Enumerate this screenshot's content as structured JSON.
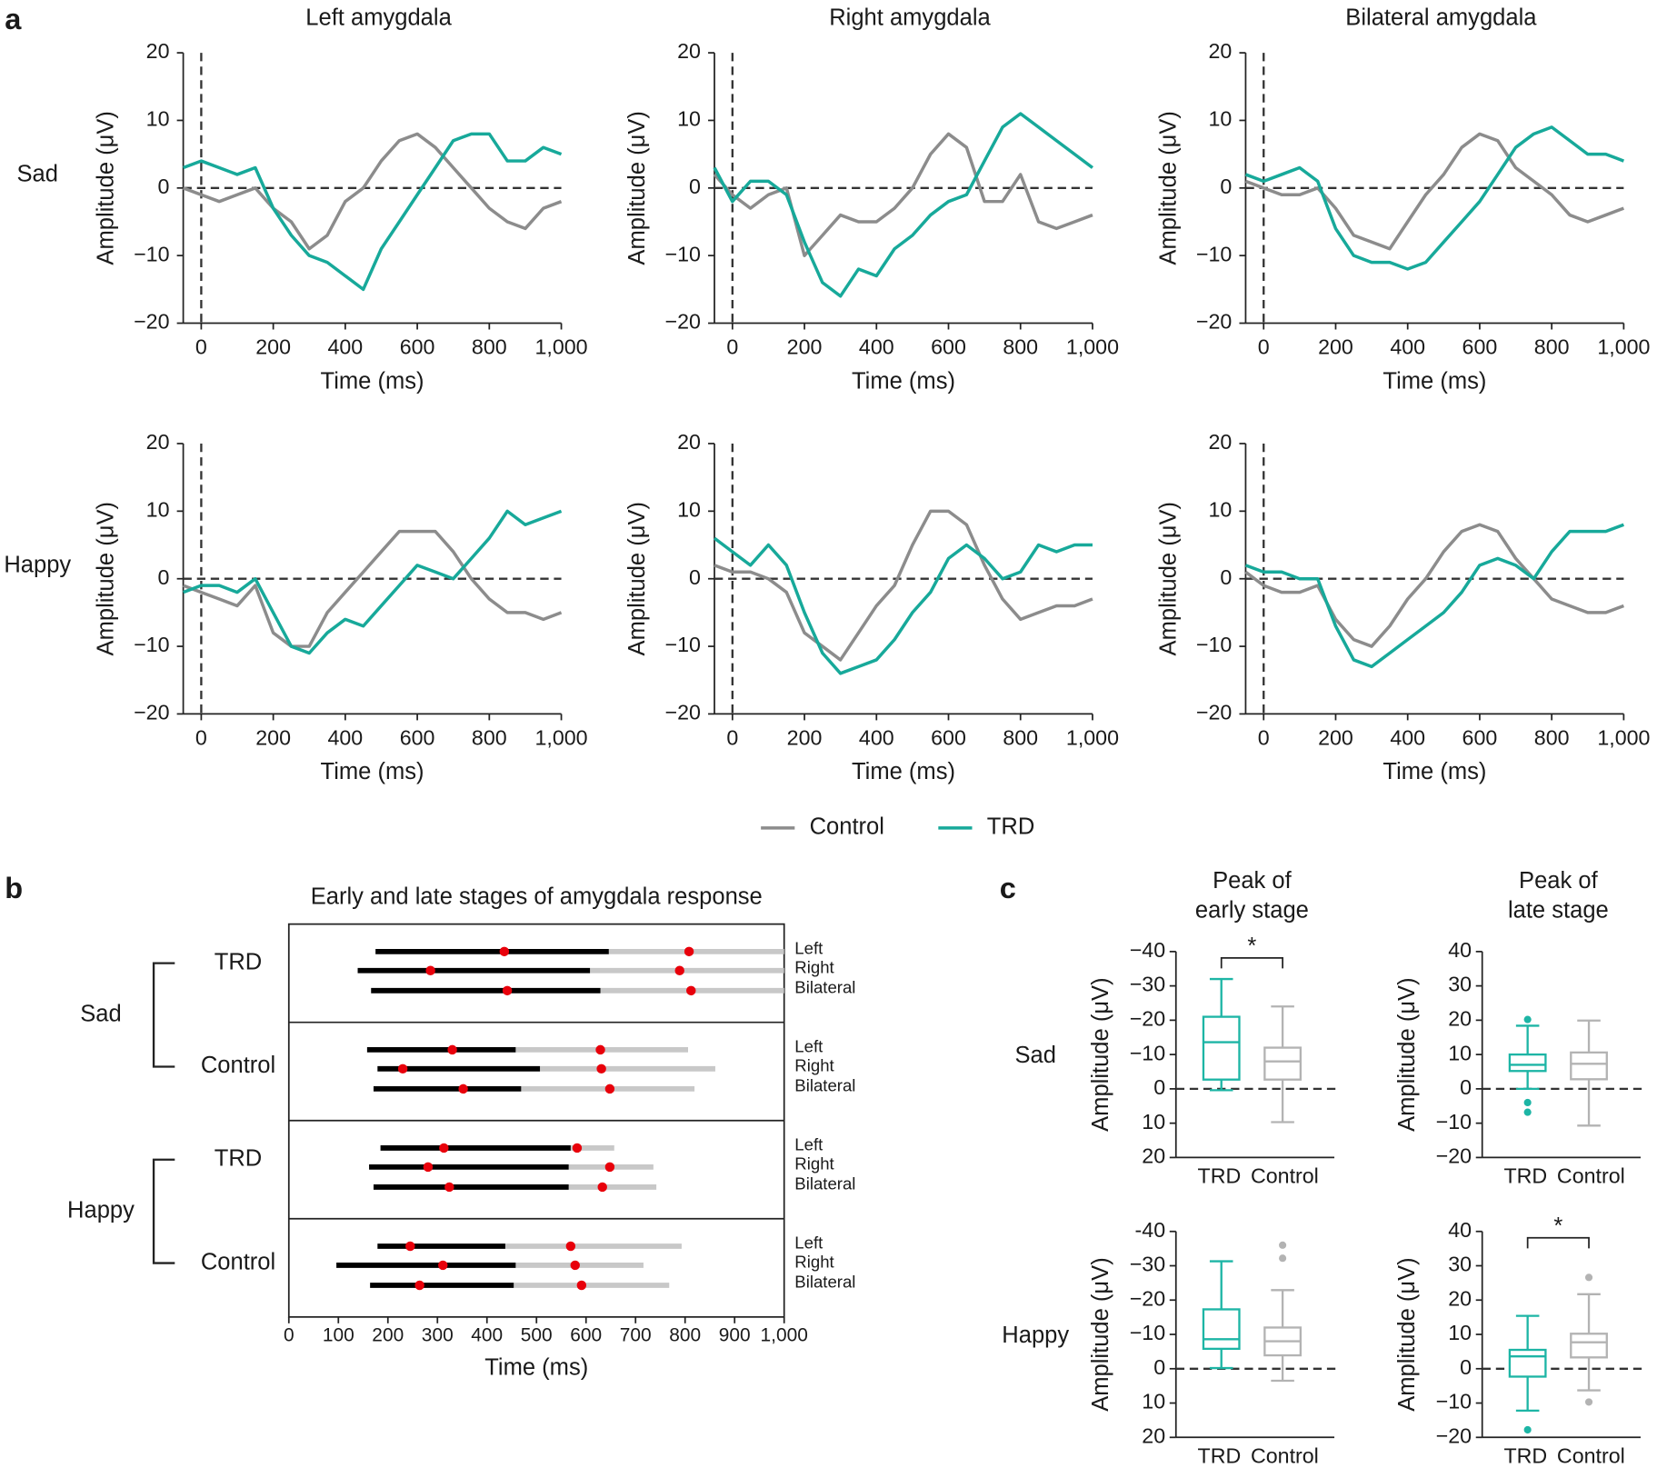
{
  "legend": {
    "series": [
      {
        "name": "Control",
        "color": "#8c8c8c"
      },
      {
        "name": "TRD",
        "color": "#17a99a"
      }
    ]
  },
  "chart_data": [
    {
      "type": "line",
      "panel_label": "a",
      "title": "Left amygdala",
      "row_label": "Sad",
      "xlabel": "Time (ms)",
      "ylabel": "Amplitude (μV)",
      "x": [
        -50,
        0,
        50,
        100,
        150,
        200,
        250,
        300,
        350,
        400,
        450,
        500,
        550,
        600,
        650,
        700,
        750,
        800,
        850,
        900,
        950,
        1000
      ],
      "series": [
        {
          "values": [
            0,
            -1,
            -2,
            -1,
            0,
            -3,
            -5,
            -9,
            -7,
            -2,
            0,
            4,
            7,
            8,
            6,
            3,
            0,
            -3,
            -5,
            -6,
            -3,
            -2
          ]
        },
        {
          "values": [
            3,
            4,
            3,
            2,
            3,
            -3,
            -7,
            -10,
            -11,
            -13,
            -15,
            -9,
            -5,
            -1,
            3,
            7,
            8,
            8,
            4,
            4,
            6,
            5
          ]
        }
      ],
      "xlim": [
        -50,
        1000
      ],
      "ylim": [
        -20,
        20
      ],
      "xticks": [
        0,
        200,
        400,
        600,
        800,
        {
          "value": 1000,
          "label": "1,000"
        }
      ],
      "yticks": [
        {
          "value": -20,
          "label": "−20"
        },
        {
          "value": -10,
          "label": "−10"
        },
        0,
        10,
        20
      ],
      "zero_lines": true
    },
    {
      "type": "line",
      "title": "Right amygdala",
      "xlabel": "Time (ms)",
      "ylabel": "Amplitude (μV)",
      "x": [
        -50,
        0,
        50,
        100,
        150,
        200,
        250,
        300,
        350,
        400,
        450,
        500,
        550,
        600,
        650,
        700,
        750,
        800,
        850,
        900,
        950,
        1000
      ],
      "series": [
        {
          "values": [
            2,
            -1,
            -3,
            -1,
            0,
            -10,
            -7,
            -4,
            -5,
            -5,
            -3,
            0,
            5,
            8,
            6,
            -2,
            -2,
            2,
            -5,
            -6,
            -5,
            -4
          ]
        },
        {
          "values": [
            3,
            -2,
            1,
            1,
            -1,
            -8,
            -14,
            -16,
            -12,
            -13,
            -9,
            -7,
            -4,
            -2,
            -1,
            4,
            9,
            11,
            9,
            7,
            5,
            3
          ]
        }
      ],
      "xlim": [
        -50,
        1000
      ],
      "ylim": [
        -20,
        20
      ],
      "xticks": [
        0,
        200,
        400,
        600,
        800,
        {
          "value": 1000,
          "label": "1,000"
        }
      ],
      "yticks": [
        {
          "value": -20,
          "label": "−20"
        },
        {
          "value": -10,
          "label": "−10"
        },
        0,
        10,
        20
      ],
      "zero_lines": true
    },
    {
      "type": "line",
      "title": "Bilateral amygdala",
      "xlabel": "Time (ms)",
      "ylabel": "Amplitude (μV)",
      "x": [
        -50,
        0,
        50,
        100,
        150,
        200,
        250,
        300,
        350,
        400,
        450,
        500,
        550,
        600,
        650,
        700,
        750,
        800,
        850,
        900,
        950,
        1000
      ],
      "series": [
        {
          "values": [
            1,
            0,
            -1,
            -1,
            0,
            -3,
            -7,
            -8,
            -9,
            -5,
            -1,
            2,
            6,
            8,
            7,
            3,
            1,
            -1,
            -4,
            -5,
            -4,
            -3
          ]
        },
        {
          "values": [
            2,
            1,
            2,
            3,
            1,
            -6,
            -10,
            -11,
            -11,
            -12,
            -11,
            -8,
            -5,
            -2,
            2,
            6,
            8,
            9,
            7,
            5,
            5,
            4
          ]
        }
      ],
      "xlim": [
        -50,
        1000
      ],
      "ylim": [
        -20,
        20
      ],
      "xticks": [
        0,
        200,
        400,
        600,
        800,
        {
          "value": 1000,
          "label": "1,000"
        }
      ],
      "yticks": [
        {
          "value": -20,
          "label": "−20"
        },
        {
          "value": -10,
          "label": "−10"
        },
        0,
        10,
        20
      ],
      "zero_lines": true
    },
    {
      "type": "line",
      "row_label": "Happy",
      "xlabel": "Time (ms)",
      "ylabel": "Amplitude (μV)",
      "x": [
        -50,
        0,
        50,
        100,
        150,
        200,
        250,
        300,
        350,
        400,
        450,
        500,
        550,
        600,
        650,
        700,
        750,
        800,
        850,
        900,
        950,
        1000
      ],
      "series": [
        {
          "values": [
            -1,
            -2,
            -3,
            -4,
            -1,
            -8,
            -10,
            -10,
            -5,
            -2,
            1,
            4,
            7,
            7,
            7,
            4,
            0,
            -3,
            -5,
            -5,
            -6,
            -5
          ]
        },
        {
          "values": [
            -2,
            -1,
            -1,
            -2,
            0,
            -5,
            -10,
            -11,
            -8,
            -6,
            -7,
            -4,
            -1,
            2,
            1,
            0,
            3,
            6,
            10,
            8,
            9,
            10
          ]
        }
      ],
      "xlim": [
        -50,
        1000
      ],
      "ylim": [
        -20,
        20
      ],
      "xticks": [
        0,
        200,
        400,
        600,
        800,
        {
          "value": 1000,
          "label": "1,000"
        }
      ],
      "yticks": [
        {
          "value": -20,
          "label": "−20"
        },
        {
          "value": -10,
          "label": "−10"
        },
        0,
        10,
        20
      ],
      "zero_lines": true
    },
    {
      "type": "line",
      "xlabel": "Time (ms)",
      "ylabel": "Amplitude (μV)",
      "x": [
        -50,
        0,
        50,
        100,
        150,
        200,
        250,
        300,
        350,
        400,
        450,
        500,
        550,
        600,
        650,
        700,
        750,
        800,
        850,
        900,
        950,
        1000
      ],
      "series": [
        {
          "values": [
            2,
            1,
            1,
            0,
            -2,
            -8,
            -10,
            -12,
            -8,
            -4,
            -1,
            5,
            10,
            10,
            8,
            2,
            -3,
            -6,
            -5,
            -4,
            -4,
            -3
          ]
        },
        {
          "values": [
            6,
            4,
            2,
            5,
            2,
            -5,
            -11,
            -14,
            -13,
            -12,
            -9,
            -5,
            -2,
            3,
            5,
            3,
            0,
            1,
            5,
            4,
            5,
            5
          ]
        }
      ],
      "xlim": [
        -50,
        1000
      ],
      "ylim": [
        -20,
        20
      ],
      "xticks": [
        0,
        200,
        400,
        600,
        800,
        {
          "value": 1000,
          "label": "1,000"
        }
      ],
      "yticks": [
        {
          "value": -20,
          "label": "−20"
        },
        {
          "value": -10,
          "label": "−10"
        },
        0,
        10,
        20
      ],
      "zero_lines": true
    },
    {
      "type": "line",
      "xlabel": "Time (ms)",
      "ylabel": "Amplitude (μV)",
      "x": [
        -50,
        0,
        50,
        100,
        150,
        200,
        250,
        300,
        350,
        400,
        450,
        500,
        550,
        600,
        650,
        700,
        750,
        800,
        850,
        900,
        950,
        1000
      ],
      "series": [
        {
          "values": [
            1,
            -1,
            -2,
            -2,
            -1,
            -6,
            -9,
            -10,
            -7,
            -3,
            0,
            4,
            7,
            8,
            7,
            3,
            0,
            -3,
            -4,
            -5,
            -5,
            -4
          ]
        },
        {
          "values": [
            2,
            1,
            1,
            0,
            0,
            -7,
            -12,
            -13,
            -11,
            -9,
            -7,
            -5,
            -2,
            2,
            3,
            2,
            0,
            4,
            7,
            7,
            7,
            8
          ]
        }
      ],
      "xlim": [
        -50,
        1000
      ],
      "ylim": [
        -20,
        20
      ],
      "xticks": [
        0,
        200,
        400,
        600,
        800,
        {
          "value": 1000,
          "label": "1,000"
        }
      ],
      "yticks": [
        {
          "value": -20,
          "label": "−20"
        },
        {
          "value": -10,
          "label": "−10"
        },
        0,
        10,
        20
      ],
      "zero_lines": true
    },
    {
      "type": "timeline",
      "panel_label": "b",
      "title": "Early and late stages of amygdala response",
      "xlabel": "Time (ms)",
      "xlim": [
        0,
        1000
      ],
      "xticks": [
        0,
        100,
        200,
        300,
        400,
        500,
        600,
        700,
        800,
        900,
        {
          "value": 1000,
          "label": "1,000"
        }
      ],
      "early_color": "#000000",
      "late_color": "#c8c8c8",
      "peak_color": "#e8000b",
      "groups": [
        {
          "name": "Sad",
          "subgroups": [
            {
              "name": "TRD",
              "rows": [
                {
                  "name": "Left",
                  "start": 175,
                  "early_end": 646,
                  "late_end": 1000,
                  "early_peak": 435,
                  "late_peak": 808
                },
                {
                  "name": "Right",
                  "start": 139,
                  "early_end": 608,
                  "late_end": 1000,
                  "early_peak": 286,
                  "late_peak": 789
                },
                {
                  "name": "Bilateral",
                  "start": 166,
                  "early_end": 629,
                  "late_end": 1000,
                  "early_peak": 441,
                  "late_peak": 812
                }
              ]
            },
            {
              "name": "Control",
              "rows": [
                {
                  "name": "Left",
                  "start": 158,
                  "early_end": 458,
                  "late_end": 806,
                  "early_peak": 330,
                  "late_peak": 629
                },
                {
                  "name": "Right",
                  "start": 179,
                  "early_end": 507,
                  "late_end": 861,
                  "early_peak": 230,
                  "late_peak": 631
                },
                {
                  "name": "Bilateral",
                  "start": 171,
                  "early_end": 469,
                  "late_end": 819,
                  "early_peak": 352,
                  "late_peak": 648
                }
              ]
            }
          ]
        },
        {
          "name": "Happy",
          "subgroups": [
            {
              "name": "TRD",
              "rows": [
                {
                  "name": "Left",
                  "start": 185,
                  "early_end": 569,
                  "late_end": 657,
                  "early_peak": 313,
                  "late_peak": 582
                },
                {
                  "name": "Right",
                  "start": 162,
                  "early_end": 565,
                  "late_end": 736,
                  "early_peak": 281,
                  "late_peak": 648
                },
                {
                  "name": "Bilateral",
                  "start": 171,
                  "early_end": 565,
                  "late_end": 742,
                  "early_peak": 324,
                  "late_peak": 633
                }
              ]
            },
            {
              "name": "Control",
              "rows": [
                {
                  "name": "Left",
                  "start": 179,
                  "early_end": 437,
                  "late_end": 793,
                  "early_peak": 245,
                  "late_peak": 569
                },
                {
                  "name": "Right",
                  "start": 96,
                  "early_end": 458,
                  "late_end": 716,
                  "early_peak": 311,
                  "late_peak": 578
                },
                {
                  "name": "Bilateral",
                  "start": 164,
                  "early_end": 454,
                  "late_end": 768,
                  "early_peak": 264,
                  "late_peak": 591
                }
              ]
            }
          ]
        }
      ]
    },
    {
      "type": "box",
      "panel_label": "c",
      "title": [
        "Peak of",
        "early stage"
      ],
      "row_label": "Sad",
      "ylabel": "Amplitude (μV)",
      "categories": [
        "TRD",
        "Control"
      ],
      "colors": [
        "#1db5a5",
        "#b3b3b3"
      ],
      "boxes": [
        {
          "low": -32,
          "q1": -21,
          "median": -13.6,
          "q3": -2.7,
          "high": 0.4,
          "outliers": []
        },
        {
          "low": -24,
          "q1": -12,
          "median": -8,
          "q3": -2.7,
          "high": 9.7,
          "outliers": []
        }
      ],
      "ylim": [
        20,
        -40
      ],
      "yticks": [
        {
          "value": -40,
          "label": "−40"
        },
        {
          "value": -30,
          "label": "−30"
        },
        {
          "value": -20,
          "label": "−20"
        },
        {
          "value": -10,
          "label": "−10"
        },
        0,
        10,
        20
      ],
      "significance": "*"
    },
    {
      "type": "box",
      "title": [
        "Peak of",
        "late stage"
      ],
      "ylabel": "Amplitude (μV)",
      "categories": [
        "TRD",
        "Control"
      ],
      "colors": [
        "#1db5a5",
        "#b3b3b3"
      ],
      "boxes": [
        {
          "low": 0,
          "q1": 5.2,
          "median": 7,
          "q3": 10,
          "high": 18.4,
          "outliers": [
            20.2,
            -4,
            -6.8
          ]
        },
        {
          "low": -10.7,
          "q1": 2.8,
          "median": 7.3,
          "q3": 10.6,
          "high": 19.9,
          "outliers": []
        }
      ],
      "ylim": [
        -20,
        40
      ],
      "yticks": [
        {
          "value": -20,
          "label": "−20"
        },
        {
          "value": -10,
          "label": "−10"
        },
        0,
        10,
        20,
        30,
        40
      ]
    },
    {
      "type": "box",
      "row_label": "Happy",
      "ylabel": "Amplitude (μV)",
      "categories": [
        "TRD",
        "Control"
      ],
      "colors": [
        "#1db5a5",
        "#b3b3b3"
      ],
      "boxes": [
        {
          "low": -31.3,
          "q1": -17.3,
          "median": -8.6,
          "q3": -5.8,
          "high": -0.2,
          "outliers": []
        },
        {
          "low": -22.9,
          "q1": -12,
          "median": -8,
          "q3": -3.9,
          "high": 3.5,
          "outliers": [
            -36,
            -32.2
          ]
        }
      ],
      "ylim": [
        20,
        -40
      ],
      "yticks": [
        {
          "value": -40,
          "label": "-40"
        },
        {
          "value": -30,
          "label": "−30"
        },
        {
          "value": -20,
          "label": "−20"
        },
        {
          "value": -10,
          "label": "−10"
        },
        0,
        10,
        20
      ]
    },
    {
      "type": "box",
      "ylabel": "Amplitude (μV)",
      "categories": [
        "TRD",
        "Control"
      ],
      "colors": [
        "#1db5a5",
        "#b3b3b3"
      ],
      "boxes": [
        {
          "low": -12.2,
          "q1": -2.3,
          "median": 3.6,
          "q3": 5.5,
          "high": 15.4,
          "outliers": [
            -17.8
          ]
        },
        {
          "low": -6.3,
          "q1": 3.3,
          "median": 7.7,
          "q3": 10.2,
          "high": 21.7,
          "outliers": [
            26.6,
            -9.7
          ]
        }
      ],
      "ylim": [
        -20,
        40
      ],
      "yticks": [
        {
          "value": -20,
          "label": "−20"
        },
        {
          "value": -10,
          "label": "−10"
        },
        0,
        10,
        20,
        30,
        40
      ],
      "significance": "*"
    }
  ]
}
